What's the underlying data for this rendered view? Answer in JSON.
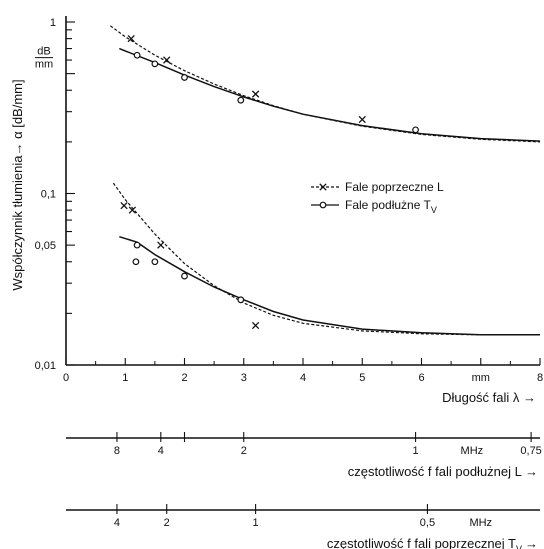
{
  "chart_data": {
    "type": "line",
    "ylabel": "Współczynnik tłumienia→ α [dB/mm]",
    "y_unit_label": {
      "numerator": "dB",
      "denominator": "mm"
    },
    "xlabel": "Długość fali  λ  →",
    "x_unit_label": "mm",
    "xlim": [
      0,
      8
    ],
    "ylim": [
      0.01,
      1
    ],
    "y_scale": "log",
    "x_ticks": [
      "0",
      "1",
      "2",
      "3",
      "4",
      "5",
      "6",
      "mm",
      "8"
    ],
    "y_ticks": [
      "0,01",
      "0,05",
      "0,1",
      "1"
    ],
    "grid": false,
    "legend_position": "center-right",
    "legend": [
      {
        "series_index": 0,
        "marker": "x",
        "style": "dashed",
        "label": "Fale poprzeczne L"
      },
      {
        "series_index": 1,
        "marker": "o",
        "style": "solid",
        "label": "Fale podłużne T",
        "label_sub": "V"
      }
    ],
    "series": [
      {
        "group": "upper",
        "style": "dashed",
        "marker": "x",
        "curve": [
          [
            0.75,
            0.95
          ],
          [
            1.0,
            0.82
          ],
          [
            1.5,
            0.64
          ],
          [
            2.0,
            0.52
          ],
          [
            2.5,
            0.435
          ],
          [
            3.0,
            0.372
          ],
          [
            3.5,
            0.325
          ],
          [
            4.0,
            0.29
          ],
          [
            5.0,
            0.247
          ],
          [
            6.0,
            0.221
          ],
          [
            7.0,
            0.207
          ],
          [
            8.0,
            0.2
          ]
        ],
        "points": [
          [
            1.1,
            0.8
          ],
          [
            1.7,
            0.6
          ],
          [
            3.2,
            0.38
          ],
          [
            5.0,
            0.27
          ]
        ]
      },
      {
        "group": "upper",
        "style": "solid",
        "marker": "o",
        "curve": [
          [
            0.9,
            0.7
          ],
          [
            1.5,
            0.58
          ],
          [
            2.0,
            0.49
          ],
          [
            2.5,
            0.42
          ],
          [
            3.0,
            0.366
          ],
          [
            3.5,
            0.323
          ],
          [
            4.0,
            0.29
          ],
          [
            5.0,
            0.249
          ],
          [
            6.0,
            0.223
          ],
          [
            7.0,
            0.209
          ],
          [
            8.0,
            0.202
          ]
        ],
        "points": [
          [
            1.2,
            0.64
          ],
          [
            1.5,
            0.57
          ],
          [
            2.0,
            0.475
          ],
          [
            2.95,
            0.35
          ],
          [
            5.9,
            0.235
          ]
        ]
      },
      {
        "group": "lower",
        "style": "dashed",
        "marker": "x",
        "curve": [
          [
            0.8,
            0.115
          ],
          [
            1.0,
            0.092
          ],
          [
            1.5,
            0.058
          ],
          [
            2.0,
            0.039
          ],
          [
            2.5,
            0.029
          ],
          [
            3.0,
            0.023
          ],
          [
            3.5,
            0.0195
          ],
          [
            4.0,
            0.0175
          ],
          [
            5.0,
            0.0158
          ],
          [
            6.0,
            0.0152
          ],
          [
            7.0,
            0.015
          ],
          [
            8.0,
            0.015
          ]
        ],
        "points": [
          [
            0.98,
            0.085
          ],
          [
            1.12,
            0.08
          ],
          [
            1.6,
            0.05
          ],
          [
            3.2,
            0.017
          ]
        ]
      },
      {
        "group": "lower",
        "style": "solid",
        "marker": "o",
        "curve": [
          [
            0.9,
            0.056
          ],
          [
            1.2,
            0.052
          ],
          [
            1.5,
            0.044
          ],
          [
            2.0,
            0.035
          ],
          [
            2.5,
            0.0285
          ],
          [
            3.0,
            0.024
          ],
          [
            3.5,
            0.0205
          ],
          [
            4.0,
            0.0183
          ],
          [
            5.0,
            0.0162
          ],
          [
            6.0,
            0.0154
          ],
          [
            7.0,
            0.015
          ],
          [
            8.0,
            0.015
          ]
        ],
        "points": [
          [
            1.2,
            0.05
          ],
          [
            1.18,
            0.04
          ],
          [
            1.5,
            0.04
          ],
          [
            2.0,
            0.033
          ],
          [
            2.95,
            0.024
          ]
        ]
      }
    ],
    "frequency_scales": [
      {
        "label": "częstotliwość f fali podłużnej L  →",
        "unit": "MHz",
        "ticks": [
          {
            "x": 0.86,
            "label": "8"
          },
          {
            "x": 1.6,
            "label": "4"
          },
          {
            "x": 2.0,
            "label": ""
          },
          {
            "x": 3.0,
            "label": "2"
          },
          {
            "x": 5.9,
            "label": "1"
          },
          {
            "x": 7.85,
            "label": "0,75"
          }
        ]
      },
      {
        "label": "częstotliwość f  fali  poprzecznej T",
        "label_sub": "V",
        "label_arrow": "→",
        "unit": "MHz",
        "ticks": [
          {
            "x": 0.86,
            "label": "4"
          },
          {
            "x": 1.7,
            "label": "2"
          },
          {
            "x": 3.2,
            "label": "1"
          },
          {
            "x": 6.1,
            "label": "0,5"
          }
        ]
      }
    ]
  }
}
